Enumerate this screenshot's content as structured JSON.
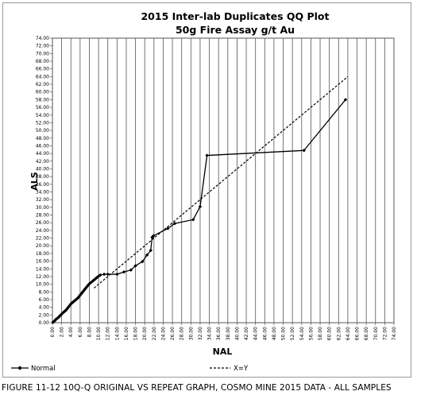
{
  "chart_data": {
    "type": "line",
    "title": "2015 Inter-lab Duplicates QQ Plot",
    "subtitle": "50g Fire Assay g/t Au",
    "xlabel": "NAL",
    "ylabel": "ALS",
    "xlim": [
      0,
      74
    ],
    "ylim": [
      0,
      74
    ],
    "x_ticks": [
      "0.00",
      "2.00",
      "4.00",
      "6.00",
      "8.00",
      "10.00",
      "12.00",
      "14.00",
      "16.00",
      "18.00",
      "20.00",
      "22.00",
      "24.00",
      "26.00",
      "28.00",
      "30.00",
      "32.00",
      "34.00",
      "36.00",
      "38.00",
      "40.00",
      "42.00",
      "44.00",
      "46.00",
      "48.00",
      "50.00",
      "52.00",
      "54.00",
      "56.00",
      "58.00",
      "60.00",
      "62.00",
      "64.00",
      "66.00",
      "68.00",
      "70.00",
      "72.00",
      "74.00"
    ],
    "y_ticks": [
      "0.00",
      "2.00",
      "4.00",
      "6.00",
      "8.00",
      "10.00",
      "12.00",
      "14.00",
      "16.00",
      "18.00",
      "20.00",
      "22.00",
      "24.00",
      "26.00",
      "28.00",
      "30.00",
      "32.00",
      "34.00",
      "36.00",
      "38.00",
      "40.00",
      "42.00",
      "44.00",
      "46.00",
      "48.00",
      "50.00",
      "52.00",
      "54.00",
      "56.00",
      "58.00",
      "60.00",
      "62.00",
      "64.00",
      "66.00",
      "68.00",
      "70.00",
      "72.00",
      "74.00"
    ],
    "grid": "vertical",
    "legend_position": "bottom",
    "series": [
      {
        "name": "Normal",
        "style": "solid-markers",
        "color": "#000000",
        "x": [
          0.1,
          0.3,
          0.5,
          0.7,
          0.9,
          1.1,
          1.3,
          1.5,
          1.7,
          1.9,
          2.1,
          2.3,
          2.5,
          2.7,
          2.9,
          3.1,
          3.3,
          3.5,
          3.7,
          3.9,
          4.1,
          4.3,
          4.5,
          4.7,
          4.9,
          5.1,
          5.3,
          5.5,
          5.7,
          5.9,
          6.1,
          6.3,
          6.5,
          6.7,
          6.9,
          7.1,
          7.3,
          7.5,
          7.7,
          7.9,
          8.2,
          8.5,
          8.8,
          9.1,
          9.4,
          9.7,
          10.0,
          10.4,
          11.2,
          12.0,
          14.0,
          15.5,
          17.0,
          18.0,
          19.5,
          20.5,
          21.3,
          21.6,
          21.9,
          25.0,
          26.5,
          30.5,
          32.0,
          33.5,
          54.5,
          63.5
        ],
        "y": [
          0.1,
          0.3,
          0.5,
          0.8,
          1.0,
          1.2,
          1.4,
          1.6,
          1.9,
          2.1,
          2.4,
          2.6,
          2.8,
          3.0,
          3.2,
          3.5,
          3.8,
          4.1,
          4.4,
          4.7,
          5.0,
          5.2,
          5.4,
          5.6,
          5.8,
          6.0,
          6.2,
          6.4,
          6.7,
          7.0,
          7.3,
          7.6,
          7.9,
          8.2,
          8.5,
          8.8,
          9.1,
          9.4,
          9.7,
          10.0,
          10.3,
          10.6,
          10.9,
          11.2,
          11.5,
          11.8,
          12.1,
          12.4,
          12.6,
          12.6,
          12.6,
          13.2,
          13.7,
          14.8,
          15.9,
          17.6,
          18.8,
          22.2,
          22.6,
          24.5,
          25.8,
          26.8,
          30.2,
          43.5,
          44.8,
          58.0
        ]
      },
      {
        "name": "X=Y",
        "style": "dashed",
        "color": "#000000",
        "x": [
          9.0,
          64.0
        ],
        "y": [
          9.0,
          64.0
        ]
      }
    ]
  },
  "caption": "FIGURE 11-12 10Q-Q ORIGINAL VS REPEAT GRAPH, COSMO MINE 2015 DATA - ALL SAMPLES"
}
